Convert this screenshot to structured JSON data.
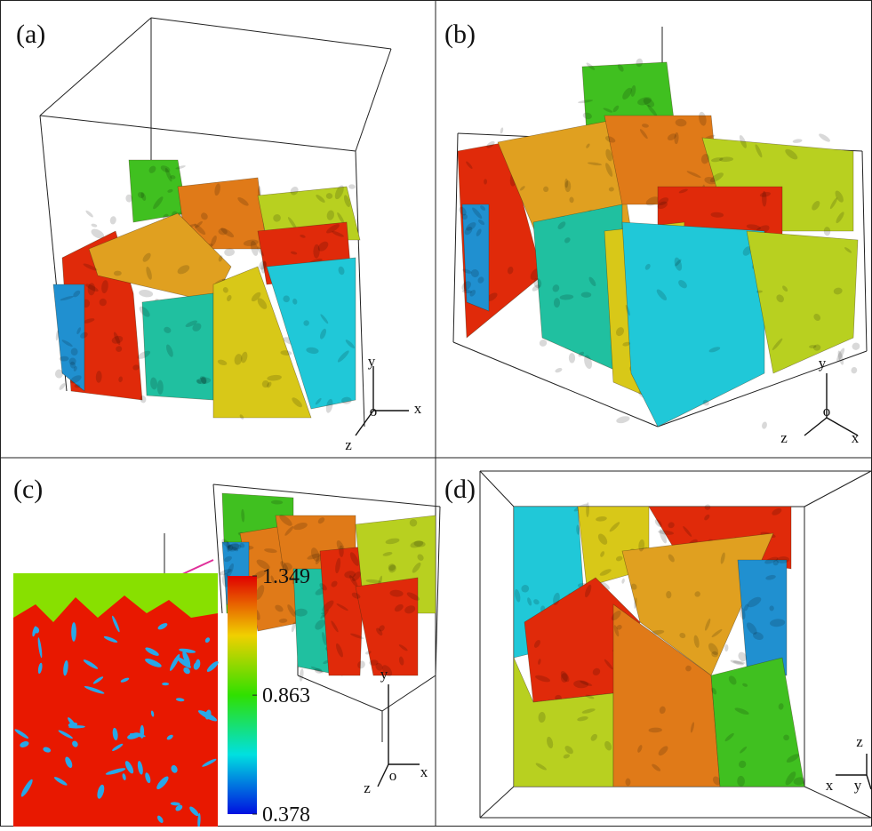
{
  "panels": [
    {
      "label": "(a)",
      "axis_labels": [
        "y",
        "x",
        "o",
        "z"
      ]
    },
    {
      "label": "(b)",
      "axis_labels": [
        "y",
        "o",
        "z",
        "x"
      ]
    },
    {
      "label": "(c)",
      "axis_labels": [
        "y",
        "z",
        "o",
        "x"
      ]
    },
    {
      "label": "(d)",
      "axis_labels": [
        "z",
        "x",
        "y"
      ]
    }
  ],
  "colorbar": {
    "ticks": [
      1.349,
      0.863,
      0.378
    ]
  }
}
